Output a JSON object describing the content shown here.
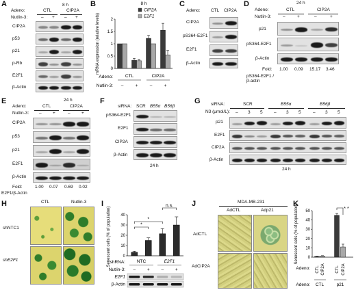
{
  "panels": {
    "A": {
      "label": "A",
      "time": "8 h",
      "adeno_label": "Adeno:",
      "groups": [
        "CTL",
        "CIP2A"
      ],
      "nutlin_label": "Nutlin-3:",
      "signs": [
        "–",
        "+",
        "–",
        "+"
      ],
      "rows": [
        "CIP2A",
        "p53",
        "p21",
        "p-Rb",
        "E2F1",
        "β-Actin"
      ]
    },
    "B": {
      "label": "B",
      "chart_data": {
        "type": "bar",
        "title": "8 h",
        "ylabel": "mRNA expression (relative levels)",
        "ylim": [
          0,
          2
        ],
        "yticks": [
          "0",
          "0.5",
          "1",
          "1.5",
          "2"
        ],
        "categories": [
          "CTL –",
          "CTL +",
          "CIP2A –",
          "CIP2A +"
        ],
        "series": [
          {
            "name": "CIP2A",
            "color": "#3a3a3a",
            "values": [
              1.0,
              0.33,
              1.22,
              1.55
            ],
            "errors": [
              0,
              0.08,
              0.12,
              0.28
            ]
          },
          {
            "name": "E2F1",
            "color": "#a8a8a8",
            "values": [
              1.0,
              0.31,
              1.0,
              0.55
            ],
            "errors": [
              0,
              0.06,
              0,
              0.18
            ]
          }
        ],
        "adeno_label": "Adeno:",
        "groups": [
          "CTL",
          "CIP2A"
        ],
        "nutlin_label": "Nutlin-3:",
        "signs": [
          "–",
          "+",
          "–",
          "+"
        ]
      }
    },
    "C": {
      "label": "C",
      "adeno_label": "Adeno:",
      "groups": [
        "CTL",
        "CIP2A"
      ],
      "rows": [
        "CIP2A",
        "pS364-E2F1",
        "E2F1",
        "β-Actin"
      ]
    },
    "D": {
      "label": "D",
      "time": "24 h",
      "adeno_label": "Adeno:",
      "groups": [
        "CTL",
        "CIP2A"
      ],
      "nutlin_label": "Nutlin-3:",
      "signs": [
        "–",
        "+",
        "–",
        "+"
      ],
      "rows": [
        "p21",
        "pS364-E2F1",
        "β-Actin"
      ],
      "fold_label": "Fold:",
      "fold_sub": "pS364-E2F1 /β-actin",
      "folds": [
        "1.00",
        "0.09",
        "15.17",
        "3.46"
      ]
    },
    "E": {
      "label": "E",
      "time": "24 h",
      "adeno_label": "Adeno:",
      "groups": [
        "CTL",
        "CIP2A"
      ],
      "nutlin_label": "Nutlin-3:",
      "signs": [
        "–",
        "+",
        "–",
        "+"
      ],
      "rows": [
        "CIP2A",
        "p53",
        "p21",
        "E2F1",
        "β-Actin"
      ],
      "fold_label": "Fold:",
      "fold_sub": "E2F1/β-Actin",
      "folds": [
        "1.00",
        "0.07",
        "0.69",
        "0.02"
      ]
    },
    "F": {
      "label": "F",
      "sirna_label": "siRNA:",
      "lanes": [
        "SCR",
        "B55α",
        "B56β"
      ],
      "rows": [
        "pS364-E2F1",
        "E2F1",
        "CIP2A",
        "β-Actin"
      ],
      "time": "24 h"
    },
    "G": {
      "label": "G",
      "sirna_label": "siRNA:",
      "groups": [
        "SCR",
        "B55α",
        "B56β"
      ],
      "n3_label": "N3 (μmol/L):",
      "doses": [
        "–",
        "3",
        "5",
        "–",
        "3",
        "5",
        "–",
        "3",
        "5"
      ],
      "rows": [
        "p21",
        "E2F1",
        "CIP2A",
        "β-Actin"
      ],
      "time": "24 h"
    },
    "H": {
      "label": "H",
      "cols": [
        "CTL",
        "Nutlin-3"
      ],
      "rows": [
        "shNTC1",
        "shE2F1"
      ]
    },
    "I": {
      "label": "I",
      "chart_data": {
        "type": "bar",
        "ylabel": "Senescent cells (% of population)",
        "ylim": [
          0,
          40
        ],
        "yticks": [
          "0",
          "10",
          "20",
          "30",
          "40"
        ],
        "categories": [
          "NTC –",
          "NTC +",
          "E2F1 –",
          "E2F1 +"
        ],
        "values": [
          3.5,
          15,
          21.5,
          30
        ],
        "errors": [
          1,
          2.5,
          5,
          8
        ],
        "annotations": [
          "*",
          "*",
          "n.s."
        ],
        "shrna_label": "shRNA:",
        "groups": [
          "NTC",
          "E2F1"
        ],
        "nutlin_label": "Nutlin-3:",
        "signs": [
          "–",
          "+",
          "–",
          "+"
        ],
        "blot_rows": [
          "E2F1",
          "β-Actin"
        ]
      }
    },
    "J": {
      "label": "J",
      "title": "MDA-MB-231",
      "cols": [
        "AdCTL",
        "Adp21"
      ],
      "rows": [
        "AdCTL",
        "AdCIP2A"
      ]
    },
    "K": {
      "label": "K",
      "chart_data": {
        "type": "bar",
        "ylabel": "Senescent cells (% of population)",
        "ylim": [
          0,
          50
        ],
        "yticks": [
          "0",
          "10",
          "20",
          "30",
          "40",
          "50"
        ],
        "categories": [
          "CTL CTL",
          "CTL CIP2A",
          "p21 CTL",
          "p21 CIP2A"
        ],
        "values": [
          0.8,
          1.2,
          45,
          11
        ],
        "errors": [
          0.3,
          0.4,
          2,
          3
        ],
        "colors": [
          "#3a3a3a",
          "#a8a8a8",
          "#3a3a3a",
          "#a8a8a8"
        ],
        "annotations": [
          "* *"
        ],
        "adeno1_label": "Adeno:",
        "adeno1": [
          "CTL",
          "CIP2A",
          "CTL",
          "CIP2A"
        ],
        "adeno2_label": "Adeno:",
        "adeno2": [
          "CTL",
          "p21"
        ]
      }
    }
  }
}
